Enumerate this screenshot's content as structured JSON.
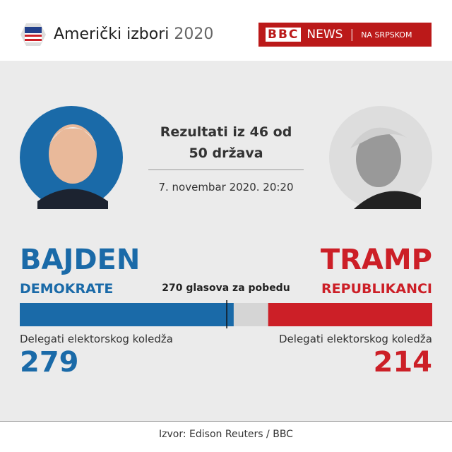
{
  "header": {
    "title": "Američki izbori",
    "year": "2020",
    "brand": "BBC",
    "news": "NEWS",
    "region": "NA SRPSKOM"
  },
  "chart_data": {
    "type": "bar",
    "title": "Rezultati iz 46 od 50 država",
    "subtitle": "7. novembar 2020. 20:20",
    "xlim": [
      0,
      538
    ],
    "threshold": {
      "value": 270,
      "label": "270 glasova za pobedu"
    },
    "series": [
      {
        "name": "BAJDEN",
        "party": "DEMOKRATE",
        "label": "Delegati elektorskog koledža",
        "color": "#1a6aa8",
        "values": [
          279
        ]
      },
      {
        "name": "TRAMP",
        "party": "REPUBLIKANCI",
        "label": "Delegati elektorskog koledža",
        "color": "#cc1f27",
        "values": [
          214
        ]
      }
    ],
    "source": "Izvor: Edison Reuters / BBC"
  }
}
